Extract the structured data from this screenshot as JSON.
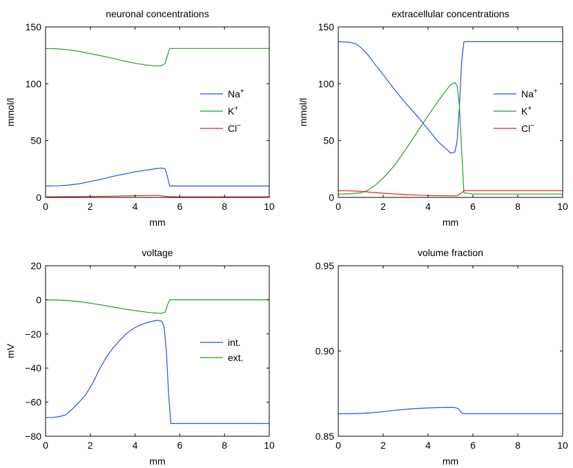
{
  "colors": {
    "na": "#2a4cf2",
    "k": "#1f9e1f",
    "cl": "#e2202a",
    "axis": "#000000"
  },
  "chart_data": [
    {
      "type": "line",
      "title": "neuronal concentrations",
      "xlabel": "mm",
      "ylabel": "mmol/l",
      "xlim": [
        0,
        10
      ],
      "ylim": [
        0,
        150
      ],
      "xticks": [
        0,
        2,
        4,
        6,
        8,
        10
      ],
      "yticks": [
        0,
        50,
        100,
        150
      ],
      "legend_position": "right",
      "series": [
        {
          "name": "Na",
          "sup": "+",
          "color_key": "na",
          "x": [
            0,
            0.5,
            1,
            1.5,
            2,
            2.5,
            3,
            3.5,
            4,
            4.5,
            5,
            5.2,
            5.35,
            5.45,
            5.55,
            6,
            7,
            8,
            9,
            10
          ],
          "y": [
            10,
            10.2,
            10.8,
            12,
            14,
            16,
            18.5,
            20.5,
            22.5,
            24,
            25.5,
            25.8,
            25,
            18,
            10,
            10,
            10,
            10,
            10,
            10
          ]
        },
        {
          "name": "K",
          "sup": "+",
          "color_key": "k",
          "x": [
            0,
            0.5,
            1,
            1.5,
            2,
            2.5,
            3,
            3.5,
            4,
            4.5,
            5,
            5.2,
            5.35,
            5.45,
            5.55,
            6,
            7,
            8,
            9,
            10
          ],
          "y": [
            131,
            130.8,
            130,
            128.5,
            126.5,
            124.5,
            122.5,
            120,
            118,
            116.5,
            115.5,
            116,
            118,
            125,
            131,
            131,
            131,
            131,
            131,
            131
          ]
        },
        {
          "name": "Cl",
          "sup": "−",
          "color_key": "cl",
          "x": [
            0,
            1,
            2,
            3,
            4,
            5,
            5.5,
            6,
            8,
            10
          ],
          "y": [
            0.5,
            0.6,
            0.8,
            1.1,
            1.5,
            1.8,
            0.6,
            0.5,
            0.5,
            0.5
          ]
        }
      ]
    },
    {
      "type": "line",
      "title": "extracellular concentrations",
      "xlabel": "mm",
      "ylabel": "mmol/l",
      "xlim": [
        0,
        10
      ],
      "ylim": [
        0,
        150
      ],
      "xticks": [
        0,
        2,
        4,
        6,
        8,
        10
      ],
      "yticks": [
        0,
        50,
        100,
        150
      ],
      "legend_position": "right",
      "series": [
        {
          "name": "Na",
          "sup": "+",
          "color_key": "na",
          "x": [
            0,
            0.5,
            0.8,
            1,
            1.3,
            1.6,
            2,
            2.5,
            3,
            3.5,
            4,
            4.5,
            4.8,
            5,
            5.2,
            5.3,
            5.4,
            5.5,
            5.6,
            6,
            7,
            8,
            9,
            10
          ],
          "y": [
            137,
            136.5,
            135,
            132,
            126,
            118,
            108,
            95,
            83,
            72,
            60,
            48,
            43,
            39,
            40,
            50,
            80,
            120,
            137,
            137,
            137,
            137,
            137,
            137
          ]
        },
        {
          "name": "K",
          "sup": "+",
          "color_key": "k",
          "x": [
            0,
            0.5,
            1,
            1.3,
            1.6,
            2,
            2.5,
            3,
            3.5,
            4,
            4.5,
            4.8,
            5,
            5.2,
            5.3,
            5.4,
            5.5,
            5.6,
            6,
            7,
            8,
            9,
            10
          ],
          "y": [
            3,
            3.2,
            4,
            6,
            10,
            17,
            28,
            42,
            57,
            72,
            86,
            94,
            99,
            101,
            98,
            80,
            40,
            4,
            3,
            3,
            3,
            3,
            3
          ]
        },
        {
          "name": "Cl",
          "sup": "−",
          "color_key": "cl",
          "x": [
            0,
            0.5,
            1,
            1.5,
            2,
            2.5,
            3,
            3.5,
            4,
            4.5,
            5,
            5.3,
            5.5,
            5.6,
            6,
            8,
            10
          ],
          "y": [
            6,
            5.8,
            5.3,
            4.5,
            3.7,
            3,
            2.5,
            2,
            1.7,
            1.5,
            1.4,
            1.5,
            4,
            6,
            6,
            6,
            6
          ]
        }
      ]
    },
    {
      "type": "line",
      "title": "voltage",
      "xlabel": "mm",
      "ylabel": "mV",
      "xlim": [
        0,
        10
      ],
      "ylim": [
        -80,
        20
      ],
      "xticks": [
        0,
        2,
        4,
        6,
        8,
        10
      ],
      "yticks": [
        -80,
        -60,
        -40,
        -20,
        0,
        20
      ],
      "legend_position": "right",
      "series": [
        {
          "name": "int.",
          "sup": "",
          "color_key": "na",
          "x": [
            0,
            0.3,
            0.6,
            0.9,
            1.2,
            1.5,
            1.8,
            2.1,
            2.4,
            2.7,
            3,
            3.3,
            3.6,
            3.9,
            4.2,
            4.5,
            4.8,
            5,
            5.2,
            5.3,
            5.4,
            5.5,
            5.6,
            6,
            7,
            8,
            9,
            10
          ],
          "y": [
            -69,
            -69,
            -68.5,
            -67.5,
            -64,
            -60,
            -55.5,
            -49,
            -41,
            -34,
            -28.5,
            -24,
            -20,
            -17,
            -15,
            -13.5,
            -12.5,
            -12,
            -12.5,
            -16,
            -30,
            -55,
            -72.5,
            -72.5,
            -72.5,
            -72.5,
            -72.5,
            -72.5
          ]
        },
        {
          "name": "ext.",
          "sup": "",
          "color_key": "k",
          "x": [
            0,
            0.5,
            1,
            1.5,
            2,
            2.5,
            3,
            3.5,
            4,
            4.5,
            5,
            5.2,
            5.35,
            5.45,
            5.55,
            6,
            7,
            8,
            9,
            10
          ],
          "y": [
            0,
            -0.1,
            -0.4,
            -1,
            -2,
            -3,
            -4.2,
            -5.3,
            -6.3,
            -7.2,
            -7.8,
            -7.9,
            -7.2,
            -3,
            0,
            0,
            0,
            0,
            0,
            0
          ]
        }
      ]
    },
    {
      "type": "line",
      "title": "volume fraction",
      "xlabel": "mm",
      "ylabel": "",
      "xlim": [
        0,
        10
      ],
      "ylim": [
        0.85,
        0.95
      ],
      "xticks": [
        0,
        2,
        4,
        6,
        8,
        10
      ],
      "yticks": [
        0.85,
        0.9,
        0.95
      ],
      "legend_position": "none",
      "series": [
        {
          "name": "volume fraction",
          "sup": "",
          "color_key": "na",
          "x": [
            0,
            0.5,
            1,
            1.5,
            2,
            2.5,
            3,
            3.5,
            4,
            4.5,
            5,
            5.2,
            5.35,
            5.45,
            5.55,
            6,
            7,
            8,
            9,
            10
          ],
          "y": [
            0.8632,
            0.8632,
            0.8634,
            0.8638,
            0.8644,
            0.8652,
            0.8658,
            0.8663,
            0.8666,
            0.8668,
            0.8669,
            0.8668,
            0.8662,
            0.8645,
            0.8632,
            0.8632,
            0.8632,
            0.8632,
            0.8632,
            0.8632
          ]
        }
      ]
    }
  ]
}
